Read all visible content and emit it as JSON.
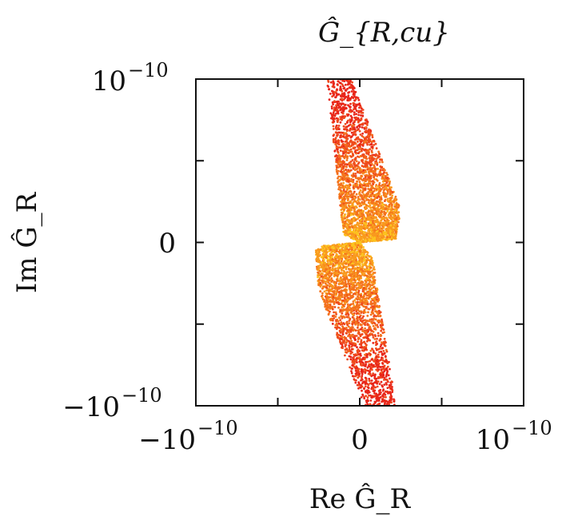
{
  "chart_data": {
    "type": "scatter",
    "title": "Ĝ_{R,cu}",
    "xlabel": "Re Ĝ_R",
    "ylabel": "Im Ĝ_R",
    "xlim": [
      -1e-10,
      1e-10
    ],
    "ylim": [
      -1e-10,
      1e-10
    ],
    "x_ticks": [
      {
        "value": -1e-10,
        "label": "−10",
        "exp": "−10"
      },
      {
        "value": 0,
        "label": "0",
        "exp": ""
      },
      {
        "value": 1e-10,
        "label": "10",
        "exp": "−10"
      }
    ],
    "y_ticks": [
      {
        "value": -1e-10,
        "label": "−10",
        "exp": "−10"
      },
      {
        "value": 0,
        "label": "0",
        "exp": ""
      },
      {
        "value": 1e-10,
        "label": "10",
        "exp": "−10"
      }
    ],
    "grid": false,
    "legend": "none",
    "point_colors": [
      "#e8261a",
      "#ef4a1c",
      "#f4731d",
      "#f99a1e",
      "#fcc41f"
    ],
    "bands": [
      {
        "name": "upper",
        "outline": [
          [
            -2e-11,
            1e-10
          ],
          [
            -5e-12,
            1e-10
          ],
          [
            2.5e-11,
            2e-11
          ],
          [
            2.2e-11,
            2e-12
          ],
          [
            0.0,
            0.0
          ],
          [
            -1e-11,
            5e-12
          ]
        ],
        "n_points": 2600
      },
      {
        "name": "lower",
        "outline": [
          [
            -2.7e-11,
            -5e-12
          ],
          [
            -2.2e-11,
            -2e-12
          ],
          [
            0.0,
            0.0
          ],
          [
            8e-12,
            -1e-11
          ],
          [
            2.2e-11,
            -1e-10
          ],
          [
            3e-12,
            -1e-10
          ],
          [
            -2.5e-11,
            -3e-11
          ]
        ],
        "n_points": 2600
      }
    ]
  }
}
